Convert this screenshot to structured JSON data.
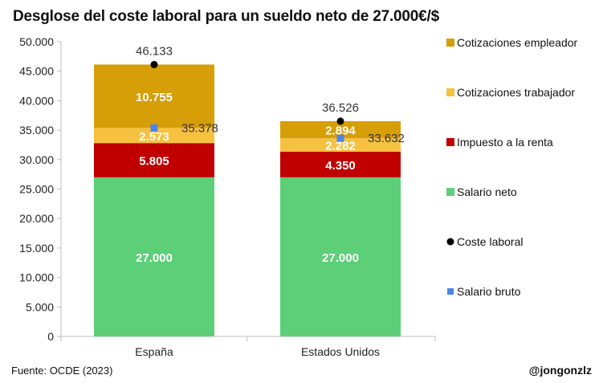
{
  "title": "Desglose del coste laboral para un sueldo neto de 27.000€/$",
  "footer": {
    "source": "Fuente: OCDE (2023)",
    "credit": "@jongonzlz"
  },
  "chart_data": {
    "type": "bar",
    "stacked": true,
    "categories": [
      "España",
      "Estados Unidos"
    ],
    "ylim": [
      0,
      50000
    ],
    "yticks": [
      0,
      5000,
      10000,
      15000,
      20000,
      25000,
      30000,
      35000,
      40000,
      45000,
      50000
    ],
    "ytick_labels": [
      "0",
      "5.000",
      "10.000",
      "15.000",
      "20.000",
      "25.000",
      "30.000",
      "35.000",
      "40.000",
      "45.000",
      "50.000"
    ],
    "series": [
      {
        "name": "Salario neto",
        "values": [
          27000,
          27000
        ],
        "labels": [
          "27.000",
          "27.000"
        ],
        "color": "#5ccf78"
      },
      {
        "name": "Impuesto a la renta",
        "values": [
          5805,
          4350
        ],
        "labels": [
          "5.805",
          "4.350"
        ],
        "color": "#c00000"
      },
      {
        "name": "Cotizaciones trabajador",
        "values": [
          2573,
          2282
        ],
        "labels": [
          "2.573",
          "2.282"
        ],
        "color": "#f7c140"
      },
      {
        "name": "Cotizaciones empleador",
        "values": [
          10755,
          2894
        ],
        "labels": [
          "10.755",
          "2.894"
        ],
        "color": "#d69e07"
      }
    ],
    "markers": [
      {
        "name": "Coste laboral",
        "values": [
          46133,
          36526
        ],
        "labels": [
          "46.133",
          "36.526"
        ],
        "color": "#000000",
        "shape": "circle"
      },
      {
        "name": "Salario bruto",
        "values": [
          35378,
          33632
        ],
        "labels": [
          "35.378",
          "33.632"
        ],
        "color": "#4a86e8",
        "shape": "square"
      }
    ],
    "legend_order": [
      "Cotizaciones empleador",
      "Cotizaciones trabajador",
      "Impuesto a la renta",
      "Salario neto",
      "Coste laboral",
      "Salario bruto"
    ],
    "legend_position": "right",
    "grid": false
  }
}
